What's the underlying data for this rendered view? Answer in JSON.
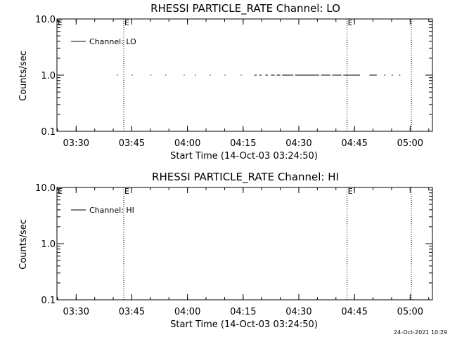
{
  "footer": {
    "timestamp": "24-Oct-2021 10:29"
  },
  "colors": {
    "background": "#ffffff",
    "ink": "#000000"
  },
  "chart_data": [
    {
      "type": "line",
      "title": "RHESSI PARTICLE_RATE Channel: LO",
      "xlabel": "Start Time (14-Oct-03 03:24:50)",
      "ylabel": "Counts/sec",
      "yscale": "log",
      "ylim": [
        0.1,
        10.0
      ],
      "xlim": [
        "03:24:50",
        "05:06:00"
      ],
      "x_ticks": [
        "03:30",
        "03:45",
        "04:00",
        "04:15",
        "04:30",
        "04:45",
        "05:00"
      ],
      "y_ticks": [
        "0.1",
        "1.0",
        "10.0"
      ],
      "legend": {
        "placement": "top-left",
        "entries": [
          "Channel: LO"
        ]
      },
      "event_markers": [
        {
          "time": "03:42:50",
          "label": "E"
        },
        {
          "time": "04:43:00",
          "label": "E"
        },
        {
          "time": "05:00:20",
          "label": ""
        }
      ],
      "series": [
        {
          "name": "Channel: LO",
          "value": 1.0,
          "segments": [
            [
              "03:41:00",
              "03:41:15"
            ],
            [
              "03:45:00",
              "03:45:15"
            ],
            [
              "03:50:00",
              "03:50:15"
            ],
            [
              "03:54:00",
              "03:54:15"
            ],
            [
              "03:59:00",
              "03:59:15"
            ],
            [
              "04:02:00",
              "04:02:15"
            ],
            [
              "04:06:00",
              "04:06:15"
            ],
            [
              "04:10:00",
              "04:10:15"
            ],
            [
              "04:14:20",
              "04:14:35"
            ],
            [
              "04:18:00",
              "04:18:40"
            ],
            [
              "04:19:20",
              "04:20:00"
            ],
            [
              "04:21:00",
              "04:21:40"
            ],
            [
              "04:22:30",
              "04:23:30"
            ],
            [
              "04:24:00",
              "04:25:00"
            ],
            [
              "04:25:30",
              "04:28:30"
            ],
            [
              "04:29:00",
              "04:35:30"
            ],
            [
              "04:36:00",
              "04:38:30"
            ],
            [
              "04:39:00",
              "04:41:30"
            ],
            [
              "04:42:00",
              "04:46:30"
            ],
            [
              "04:49:00",
              "04:51:00"
            ],
            [
              "04:53:00",
              "04:53:20"
            ],
            [
              "04:55:00",
              "04:55:20"
            ],
            [
              "04:57:00",
              "04:57:20"
            ]
          ]
        }
      ]
    },
    {
      "type": "line",
      "title": "RHESSI PARTICLE_RATE Channel: HI",
      "xlabel": "Start Time (14-Oct-03 03:24:50)",
      "ylabel": "Counts/sec",
      "yscale": "log",
      "ylim": [
        0.1,
        10.0
      ],
      "xlim": [
        "03:24:50",
        "05:06:00"
      ],
      "x_ticks": [
        "03:30",
        "03:45",
        "04:00",
        "04:15",
        "04:30",
        "04:45",
        "05:00"
      ],
      "y_ticks": [
        "0.1",
        "1.0",
        "10.0"
      ],
      "legend": {
        "placement": "top-left",
        "entries": [
          "Channel: HI"
        ]
      },
      "event_markers": [
        {
          "time": "03:42:50",
          "label": "E"
        },
        {
          "time": "04:43:00",
          "label": "E"
        },
        {
          "time": "05:00:20",
          "label": ""
        }
      ],
      "series": [
        {
          "name": "Channel: HI",
          "value": 1.0,
          "segments": []
        }
      ]
    }
  ]
}
